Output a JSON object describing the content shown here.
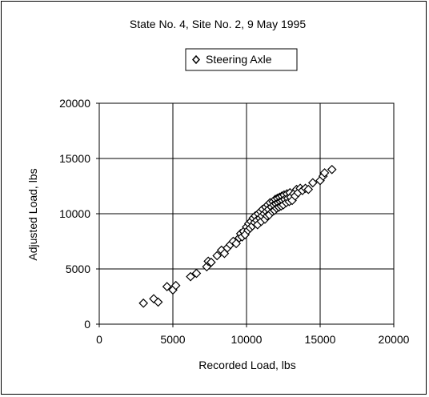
{
  "chart_data": {
    "type": "scatter",
    "title": "State No. 4, Site No. 2, 9 May 1995",
    "xlabel": "Recorded Load, lbs",
    "ylabel": "Adjusted Load, lbs",
    "xlim": [
      0,
      20000
    ],
    "ylim": [
      0,
      20000
    ],
    "xticks": [
      0,
      5000,
      10000,
      15000,
      20000
    ],
    "yticks": [
      0,
      5000,
      10000,
      15000,
      20000
    ],
    "xtick_labels": [
      "0",
      "5000",
      "10000",
      "15000",
      "20000"
    ],
    "ytick_labels": [
      "0",
      "5000",
      "10000",
      "15000",
      "20000"
    ],
    "grid": true,
    "legend_position": "top-center",
    "marker": "open-diamond",
    "series": [
      {
        "name": "Steering Axle",
        "color": "#000000",
        "points": [
          [
            3000,
            1900
          ],
          [
            3700,
            2300
          ],
          [
            4000,
            2000
          ],
          [
            4600,
            3400
          ],
          [
            5000,
            3100
          ],
          [
            5200,
            3500
          ],
          [
            6200,
            4300
          ],
          [
            6600,
            4600
          ],
          [
            7300,
            5200
          ],
          [
            7400,
            5700
          ],
          [
            7600,
            5600
          ],
          [
            8000,
            6200
          ],
          [
            8300,
            6700
          ],
          [
            8500,
            6400
          ],
          [
            8700,
            6900
          ],
          [
            8900,
            7200
          ],
          [
            9100,
            7500
          ],
          [
            9300,
            7300
          ],
          [
            9500,
            7800
          ],
          [
            9600,
            8200
          ],
          [
            9700,
            7900
          ],
          [
            9800,
            8400
          ],
          [
            9900,
            8100
          ],
          [
            10000,
            8800
          ],
          [
            10100,
            8500
          ],
          [
            10150,
            9100
          ],
          [
            10250,
            8700
          ],
          [
            10300,
            9300
          ],
          [
            10400,
            8900
          ],
          [
            10450,
            9600
          ],
          [
            10550,
            9200
          ],
          [
            10600,
            9800
          ],
          [
            10700,
            9400
          ],
          [
            10750,
            9000
          ],
          [
            10800,
            10000
          ],
          [
            10900,
            9600
          ],
          [
            10950,
            10200
          ],
          [
            11000,
            9300
          ],
          [
            11050,
            9800
          ],
          [
            11100,
            10400
          ],
          [
            11200,
            10000
          ],
          [
            11250,
            9500
          ],
          [
            11300,
            10600
          ],
          [
            11350,
            10200
          ],
          [
            11400,
            9800
          ],
          [
            11450,
            10800
          ],
          [
            11500,
            10400
          ],
          [
            11550,
            9900
          ],
          [
            11600,
            11000
          ],
          [
            11700,
            10600
          ],
          [
            11750,
            10200
          ],
          [
            11800,
            11100
          ],
          [
            11850,
            10800
          ],
          [
            11900,
            10300
          ],
          [
            11950,
            11300
          ],
          [
            12000,
            10900
          ],
          [
            12050,
            10500
          ],
          [
            12100,
            11400
          ],
          [
            12150,
            11000
          ],
          [
            12200,
            10600
          ],
          [
            12250,
            11500
          ],
          [
            12300,
            11100
          ],
          [
            12350,
            10700
          ],
          [
            12400,
            11600
          ],
          [
            12450,
            11200
          ],
          [
            12500,
            10800
          ],
          [
            12550,
            11700
          ],
          [
            12600,
            11300
          ],
          [
            12700,
            11000
          ],
          [
            12750,
            11800
          ],
          [
            12800,
            11400
          ],
          [
            12900,
            11100
          ],
          [
            12950,
            11900
          ],
          [
            13000,
            11500
          ],
          [
            13100,
            11200
          ],
          [
            13200,
            11800
          ],
          [
            13300,
            11600
          ],
          [
            13400,
            12200
          ],
          [
            13500,
            11900
          ],
          [
            13650,
            12300
          ],
          [
            13800,
            12100
          ],
          [
            14000,
            12300
          ],
          [
            14200,
            12200
          ],
          [
            14500,
            12800
          ],
          [
            15000,
            13000
          ],
          [
            15200,
            13400
          ],
          [
            15300,
            13700
          ],
          [
            15800,
            14000
          ]
        ]
      }
    ]
  }
}
